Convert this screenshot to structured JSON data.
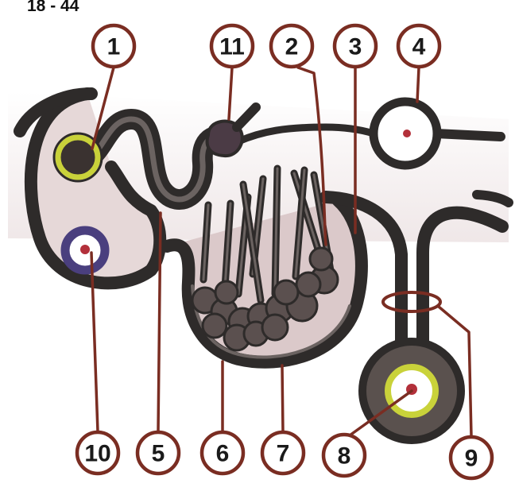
{
  "figure": {
    "id_text": "18 - 44"
  },
  "colors": {
    "tube_outer": "#2e2b2a",
    "tube_inner": "#6b6361",
    "cavity_fill": "#d9c8c9",
    "marker_circle": "#7a2d22",
    "marker_text": "#1a1a1a",
    "yellow_ring": "#c9d23a",
    "purple_ring": "#4a3f7e",
    "red_dot": "#b3303a"
  },
  "labels": [
    {
      "number": "1"
    },
    {
      "number": "11"
    },
    {
      "number": "2"
    },
    {
      "number": "3"
    },
    {
      "number": "4"
    },
    {
      "number": "10"
    },
    {
      "number": "5"
    },
    {
      "number": "6"
    },
    {
      "number": "7"
    },
    {
      "number": "8"
    },
    {
      "number": "9"
    }
  ]
}
